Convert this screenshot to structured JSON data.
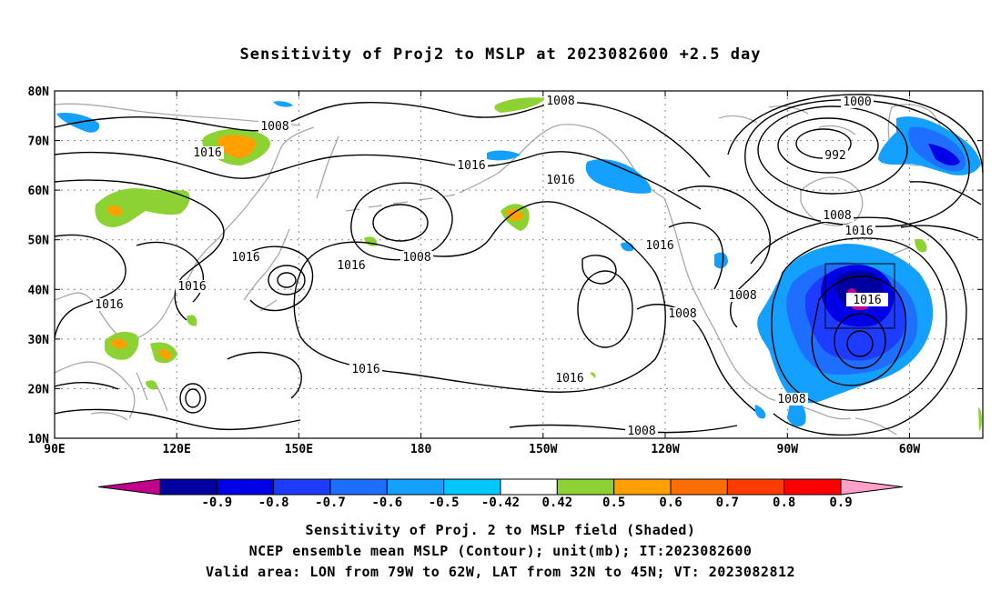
{
  "title": "Sensitivity of Proj2 to MSLP at 2023082600 +2.5 day",
  "lon_labels": [
    "90E",
    "120E",
    "150E",
    "180",
    "150W",
    "120W",
    "90W",
    "60W"
  ],
  "lat_labels": [
    "80N",
    "70N",
    "60N",
    "50N",
    "40N",
    "30N",
    "20N",
    "10N"
  ],
  "colorbar": {
    "labels": [
      "-0.9",
      "-0.8",
      "-0.7",
      "-0.6",
      "-0.5",
      "-0.42",
      "0.42",
      "0.5",
      "0.6",
      "0.7",
      "0.8",
      "0.9"
    ],
    "colors": [
      "#c3008c",
      "#0000a0",
      "#0000e6",
      "#1e3cff",
      "#1e6eff",
      "#14a0ff",
      "#00c8ff",
      "#ffffff",
      "#8cd232",
      "#ffa000",
      "#ff6e00",
      "#ff3c00",
      "#ff0000",
      "#ffa0c8"
    ]
  },
  "contours": {
    "labels": [
      "1008",
      "1000",
      "992",
      "1008",
      "1016",
      "1016",
      "1008",
      "1016",
      "1016",
      "1008",
      "1016",
      "1016",
      "1016",
      "1008",
      "1016",
      "1016",
      "1008",
      "1008",
      "1016",
      "1016",
      "1008",
      "1008"
    ]
  },
  "valid_box_label": "1016",
  "captions": {
    "line1": "Sensitivity of Proj. 2 to MSLP field (Shaded)",
    "line2": "NCEP ensemble mean MSLP (Contour); unit(mb); IT:2023082600",
    "line3": "Valid area: LON from 79W to 62W, LAT from 32N to 45N; VT: 2023082812"
  }
}
